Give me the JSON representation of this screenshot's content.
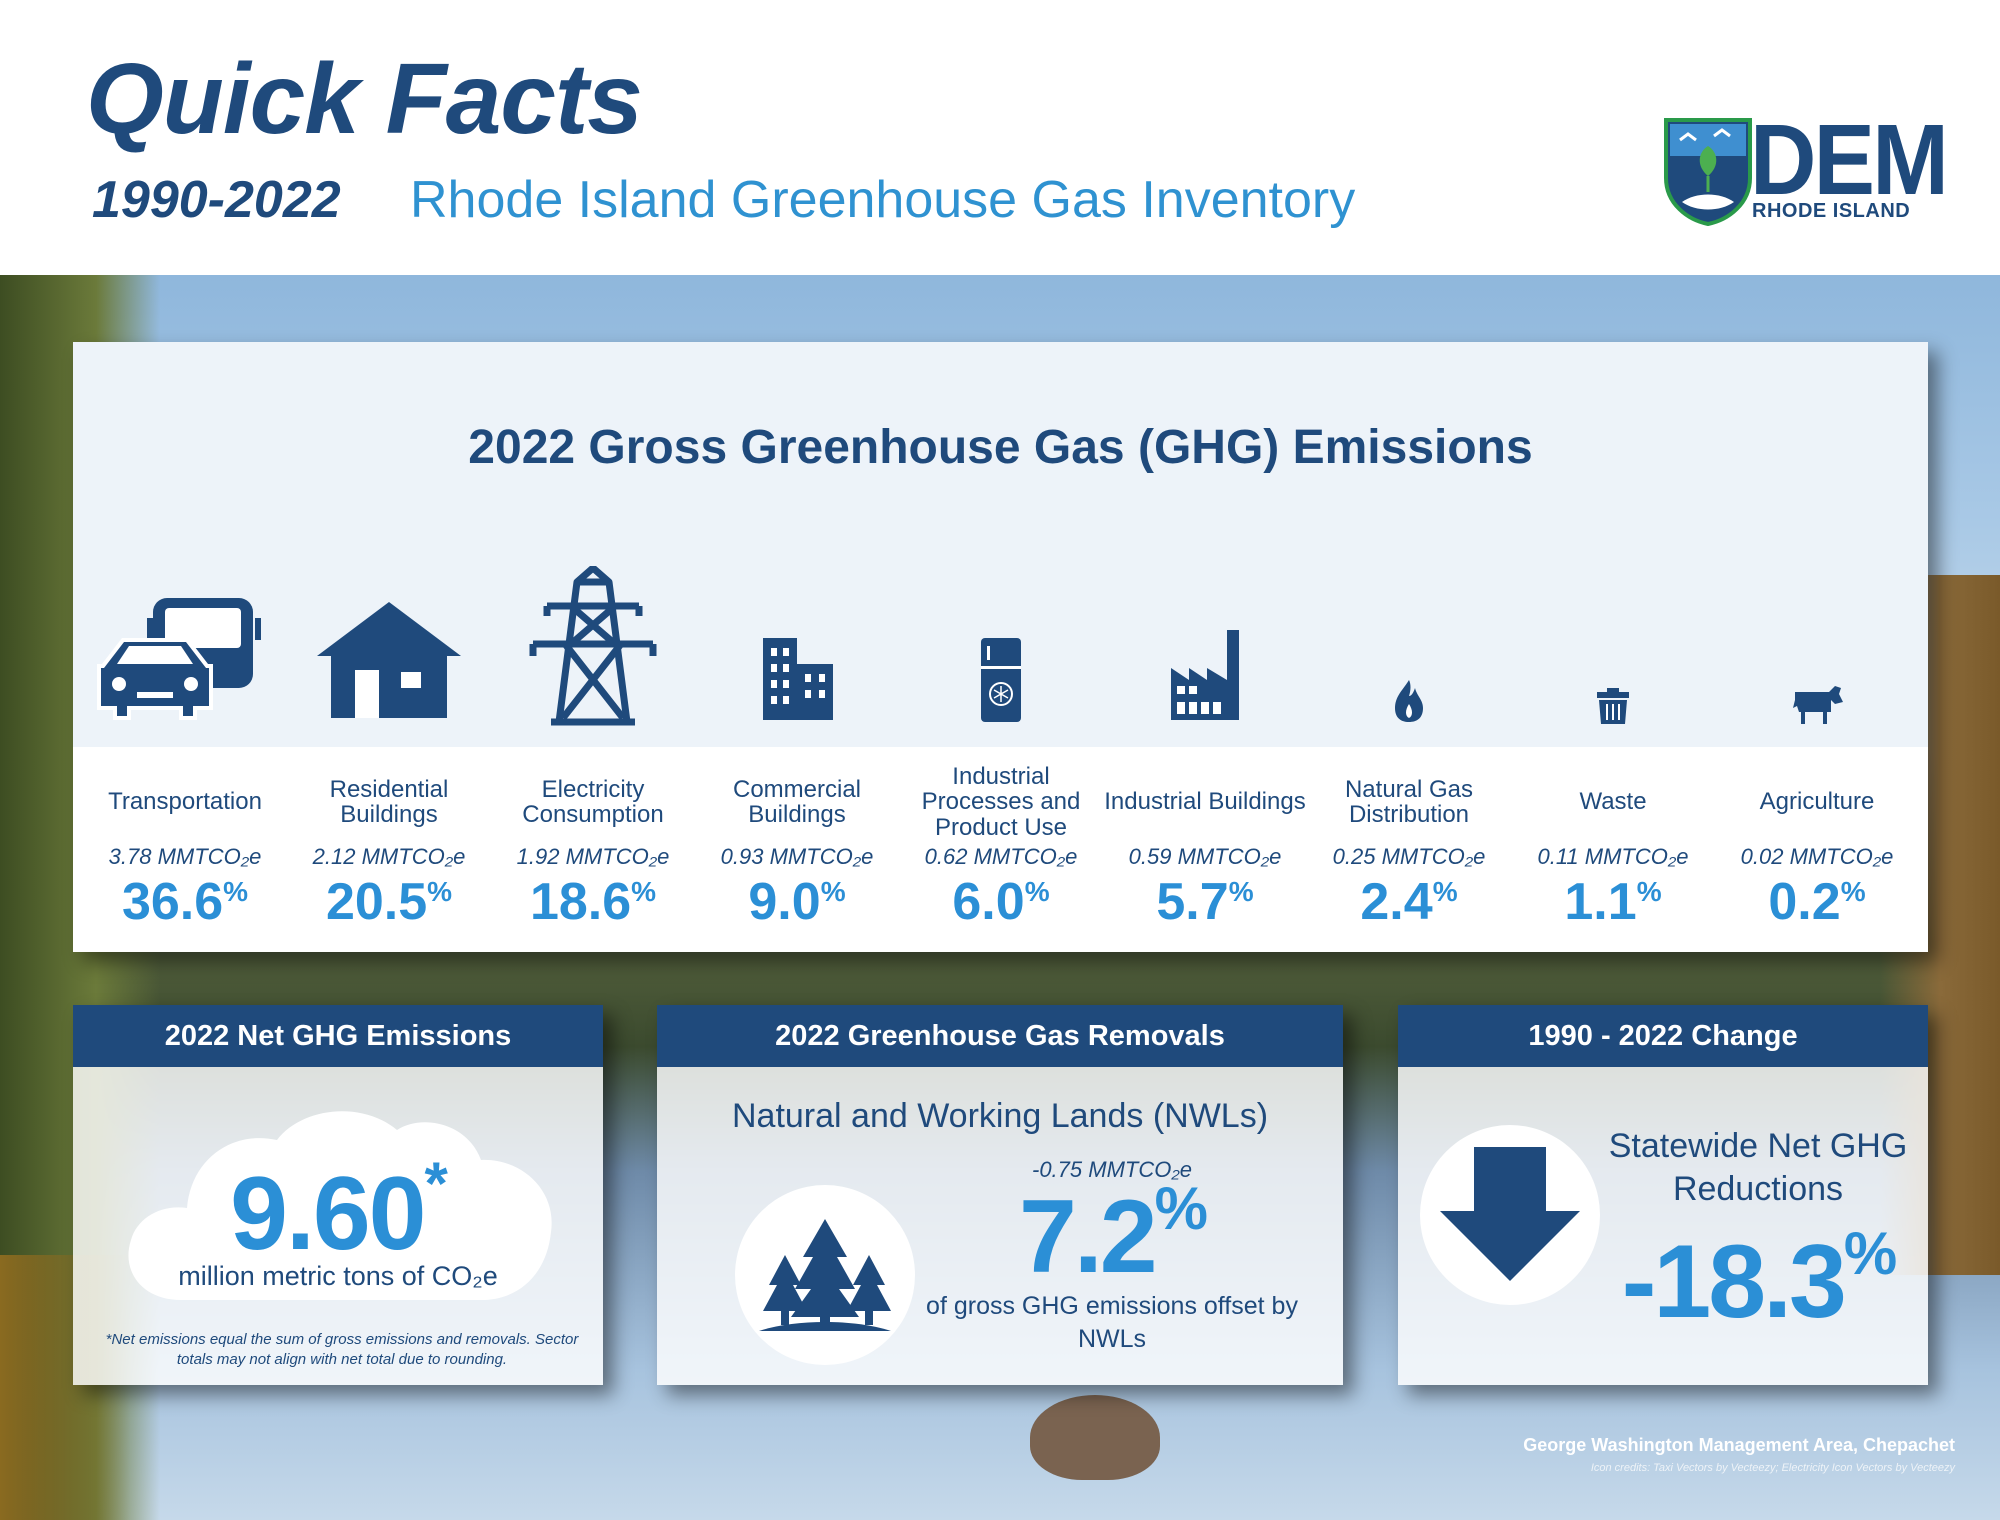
{
  "header": {
    "title": "Quick Facts",
    "years": "1990-2022",
    "subtitle": "Rhode Island Greenhouse Gas Inventory",
    "logo": {
      "name": "DEM",
      "tagline": "RHODE ISLAND"
    }
  },
  "gross": {
    "title": "2022 Gross Greenhouse Gas (GHG) Emissions",
    "unit": "MMTCO₂e",
    "sectors": [
      {
        "name": "Transportation",
        "value": "3.78 MMTCO₂e",
        "pct": "36.6",
        "icon": "car-bus-icon"
      },
      {
        "name": "Residential Buildings",
        "value": "2.12 MMTCO₂e",
        "pct": "20.5",
        "icon": "house-icon"
      },
      {
        "name": "Electricity Consumption",
        "value": "1.92 MMTCO₂e",
        "pct": "18.6",
        "icon": "transmission-tower-icon"
      },
      {
        "name": "Commercial Buildings",
        "value": "0.93 MMTCO₂e",
        "pct": "9.0",
        "icon": "office-building-icon"
      },
      {
        "name": "Industrial Processes and Product Use",
        "value": "0.62 MMTCO₂e",
        "pct": "6.0",
        "icon": "refrigerator-icon"
      },
      {
        "name": "Industrial Buildings",
        "value": "0.59 MMTCO₂e",
        "pct": "5.7",
        "icon": "factory-icon"
      },
      {
        "name": "Natural Gas Distribution",
        "value": "0.25 MMTCO₂e",
        "pct": "2.4",
        "icon": "flame-icon"
      },
      {
        "name": "Waste",
        "value": "0.11 MMTCO₂e",
        "pct": "1.1",
        "icon": "trash-can-icon"
      },
      {
        "name": "Agriculture",
        "value": "0.02 MMTCO₂e",
        "pct": "0.2",
        "icon": "cow-icon"
      }
    ],
    "percent_sign": "%"
  },
  "net": {
    "title": "2022 Net GHG Emissions",
    "value": "9.60",
    "asterisk": "*",
    "unit": "million metric tons of CO₂e",
    "note": "*Net emissions equal the sum of gross emissions and removals. Sector totals may not align with net total due to rounding."
  },
  "removals": {
    "title": "2022 Greenhouse Gas Removals",
    "subtitle": "Natural and Working Lands (NWLs)",
    "value": "-0.75 MMTCO₂e",
    "pct": "7.2",
    "description": "of gross GHG emissions offset by NWLs"
  },
  "change": {
    "title": "1990 - 2022 Change",
    "label": "Statewide Net GHG Reductions",
    "pct": "-18.3"
  },
  "footer": {
    "caption": "George Washington Management Area, Chepachet",
    "credits": "Icon credits: Taxi Vectors by Vecteezy; Electricity Icon Vectors by Vecteezy"
  },
  "colors": {
    "navy": "#1f4a7c",
    "blue": "#2b8fd6",
    "light_blue": "#2f92d1"
  }
}
